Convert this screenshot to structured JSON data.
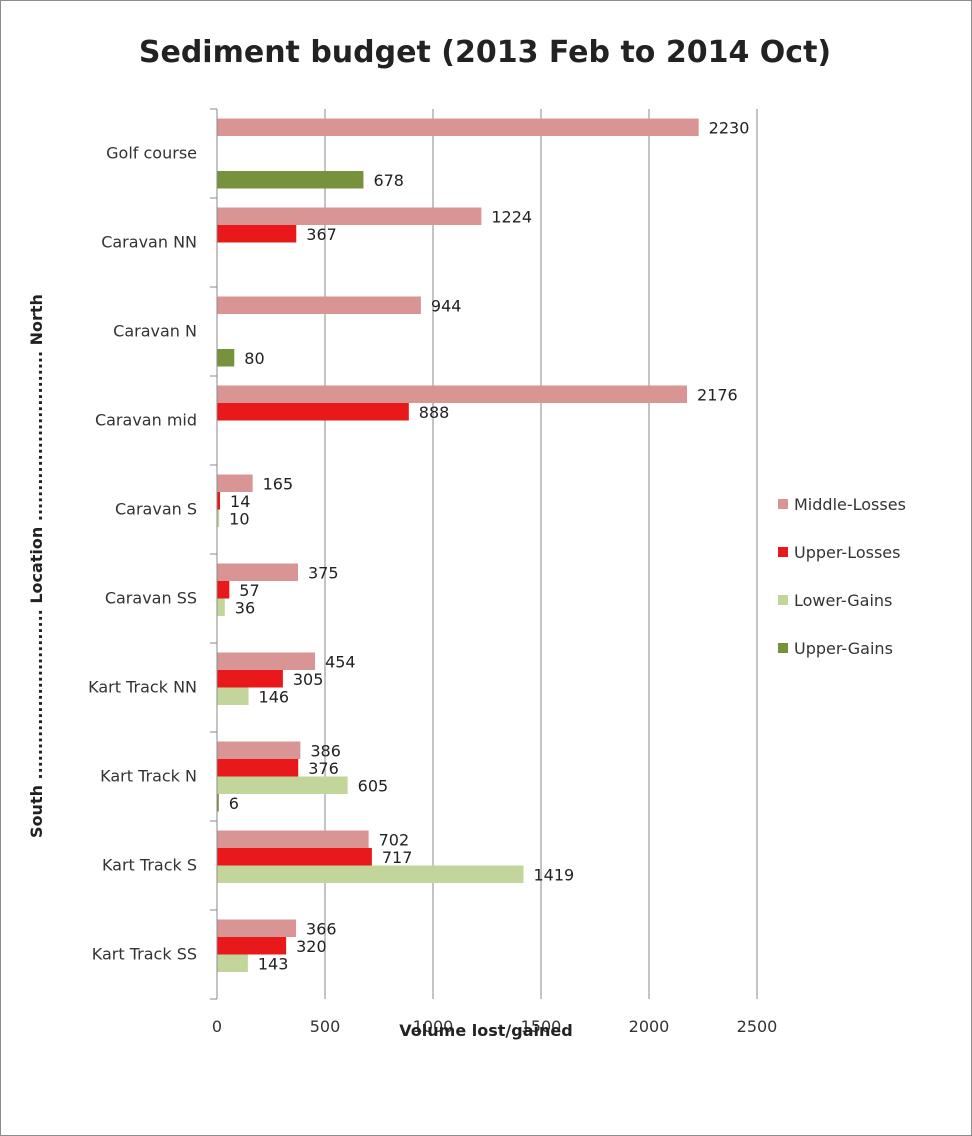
{
  "chart_data": {
    "type": "bar",
    "orientation": "horizontal",
    "title": "Sediment budget (2013 Feb to 2014 Oct)",
    "xlabel": "Volume lost/gained",
    "ylabel": "South ............................ Location ............................ North",
    "xlim": [
      0,
      2500
    ],
    "xticks": [
      0,
      500,
      1000,
      1500,
      2000,
      2500
    ],
    "grid": "vertical",
    "legend_position": "right",
    "categories": [
      "Golf course",
      "Caravan NN",
      "Caravan N",
      "Caravan mid",
      "Caravan S",
      "Caravan SS",
      "Kart Track NN",
      "Kart Track N",
      "Kart Track S",
      "Kart Track SS"
    ],
    "series": [
      {
        "name": "Middle-Losses",
        "color": "#d99594",
        "values": [
          2230,
          1224,
          944,
          2176,
          165,
          375,
          454,
          386,
          702,
          366
        ]
      },
      {
        "name": "Upper-Losses",
        "color": "#e8181b",
        "values": [
          null,
          367,
          null,
          888,
          14,
          57,
          305,
          376,
          717,
          320
        ]
      },
      {
        "name": "Lower-Gains",
        "color": "#c2d69b",
        "values": [
          null,
          null,
          null,
          null,
          10,
          36,
          146,
          605,
          1419,
          143
        ]
      },
      {
        "name": "Upper-Gains",
        "color": "#76923c",
        "values": [
          678,
          null,
          80,
          null,
          null,
          null,
          null,
          6,
          null,
          null
        ]
      }
    ]
  }
}
